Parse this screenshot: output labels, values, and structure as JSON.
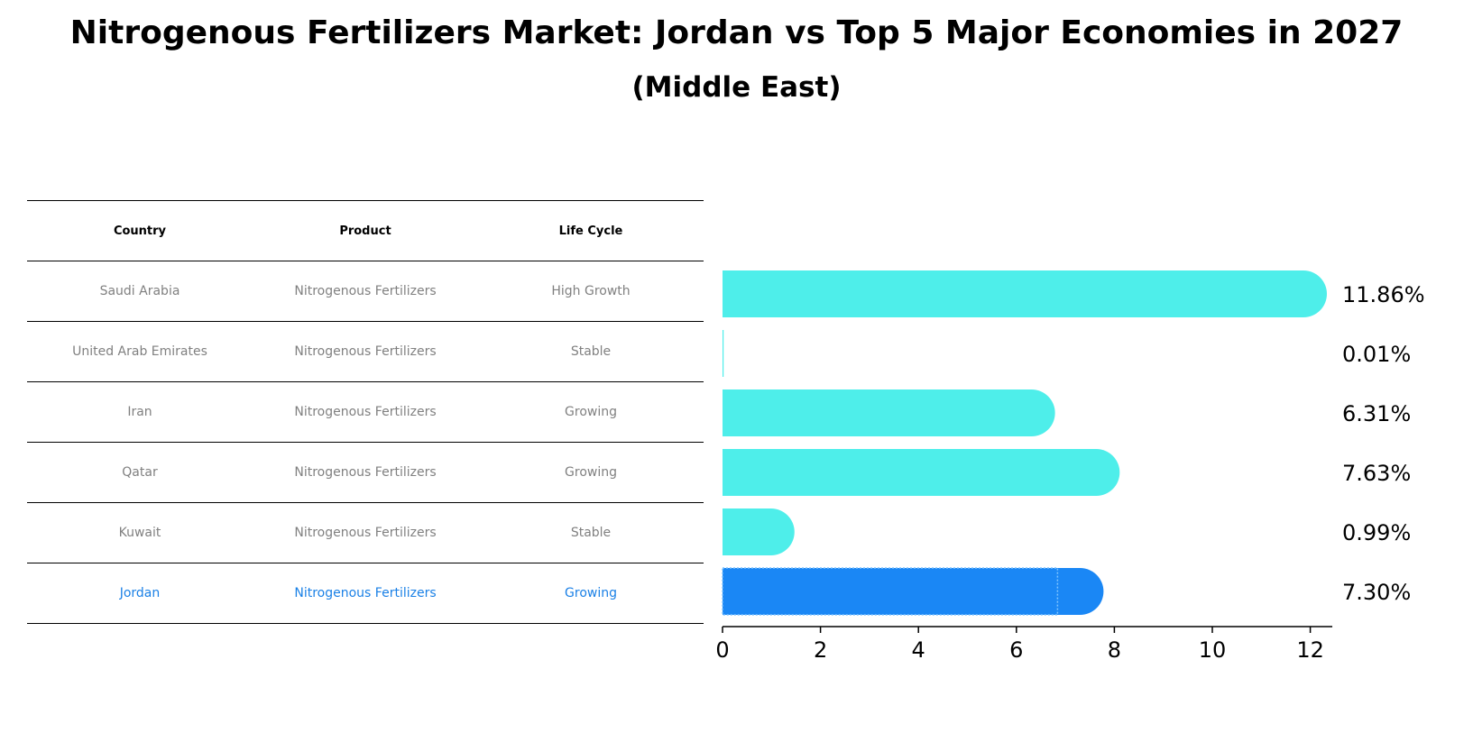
{
  "chart_data": {
    "type": "bar",
    "orientation": "horizontal",
    "title": "Nitrogenous Fertilizers Market: Jordan vs Top 5 Major Economies in 2027",
    "subtitle": "(Middle East)",
    "table": {
      "headers": [
        "Country",
        "Product",
        "Life Cycle"
      ],
      "rows": [
        [
          "Saudi Arabia",
          "Nitrogenous Fertilizers",
          "High Growth"
        ],
        [
          "United Arab Emirates",
          "Nitrogenous Fertilizers",
          "Stable"
        ],
        [
          "Iran",
          "Nitrogenous Fertilizers",
          "Growing"
        ],
        [
          "Qatar",
          "Nitrogenous Fertilizers",
          "Growing"
        ],
        [
          "Kuwait",
          "Nitrogenous Fertilizers",
          "Stable"
        ],
        [
          "Jordan",
          "Nitrogenous Fertilizers",
          "Growing"
        ]
      ]
    },
    "categories": [
      "Saudi Arabia",
      "United Arab Emirates",
      "Iran",
      "Qatar",
      "Kuwait",
      "Jordan"
    ],
    "values": [
      11.86,
      0.01,
      6.31,
      7.63,
      0.99,
      7.3
    ],
    "value_labels": [
      "11.86%",
      "0.01%",
      "6.31%",
      "7.63%",
      "0.99%",
      "7.30%"
    ],
    "highlight": "Jordan",
    "colors": {
      "default_bar": "#4eeeea",
      "highlight_bar": "#1a87f5",
      "highlight_text": "#1a80e6",
      "muted_text": "#808080"
    },
    "xlim": [
      0,
      12.45
    ],
    "xticks": [
      0,
      2,
      4,
      6,
      8,
      10,
      12
    ],
    "xlabel": "",
    "ylabel": "",
    "grid": false
  }
}
